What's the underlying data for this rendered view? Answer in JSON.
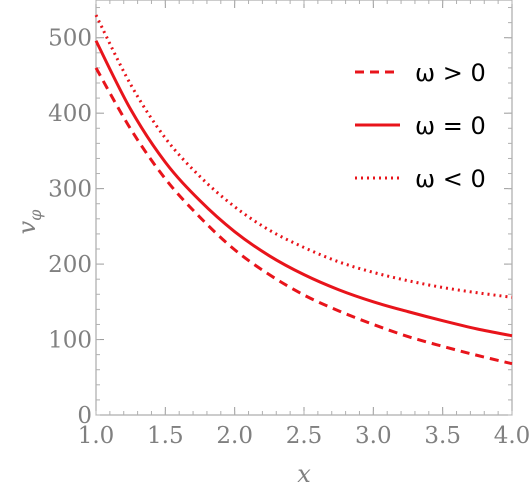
{
  "chart_data": {
    "type": "line",
    "xlabel": "x",
    "ylabel": "v_φ",
    "ylabel_main": "v",
    "ylabel_sub": "φ",
    "xlim": [
      1.0,
      4.0
    ],
    "ylim": [
      0,
      550
    ],
    "x_ticks": [
      "1.0",
      "1.5",
      "2.0",
      "2.5",
      "3.0",
      "3.5",
      "4.0"
    ],
    "y_ticks": [
      "0",
      "100",
      "200",
      "300",
      "400",
      "500"
    ],
    "grid": false,
    "legend_position": "top-right",
    "color": "#e8141b",
    "x": [
      1.0,
      1.25,
      1.5,
      1.75,
      2.0,
      2.25,
      2.5,
      2.75,
      3.0,
      3.25,
      3.5,
      3.75,
      4.0
    ],
    "series": [
      {
        "name": "ω > 0",
        "style": "dashed",
        "values": [
          460,
          379,
          313,
          262,
          219,
          186,
          159,
          138,
          120,
          104,
          91,
          79,
          68
        ]
      },
      {
        "name": "ω = 0",
        "style": "solid",
        "values": [
          496,
          405,
          335,
          284,
          243,
          211,
          186,
          166,
          150,
          137,
          125,
          114,
          105
        ]
      },
      {
        "name": "ω < 0",
        "style": "dotted",
        "values": [
          530,
          438,
          367,
          316,
          276,
          245,
          222,
          203,
          189,
          178,
          169,
          162,
          156
        ]
      }
    ]
  }
}
